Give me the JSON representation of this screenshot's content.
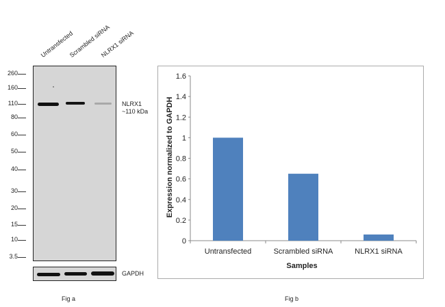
{
  "fig_a": {
    "label": "Fig a",
    "lanes": [
      "Untransfected",
      "Scrambled siRNA",
      "NLRX1  siRNA"
    ],
    "markers": [
      "260",
      "160",
      "110",
      "80",
      "60",
      "50",
      "40",
      "30",
      "20",
      "15",
      "10",
      "3.5"
    ],
    "target_label": "NLRX1",
    "target_size": "~110 kDa",
    "loading_control": "GAPDH"
  },
  "fig_b": {
    "label": "Fig b"
  },
  "chart_data": {
    "type": "bar",
    "categories": [
      "Untransfected",
      "Scrambled siRNA",
      "NLRX1 siRNA"
    ],
    "values": [
      1.0,
      0.65,
      0.06
    ],
    "title": "",
    "xlabel": "Samples",
    "ylabel": "Expression normalized to GAPDH",
    "ylim": [
      0,
      1.6
    ],
    "yticks": [
      "0",
      "0.2",
      "0.4",
      "0.6",
      "0.8",
      "1",
      "1.2",
      "1.4",
      "1.6"
    ],
    "grid": false,
    "bar_color": "#4f81bd"
  }
}
